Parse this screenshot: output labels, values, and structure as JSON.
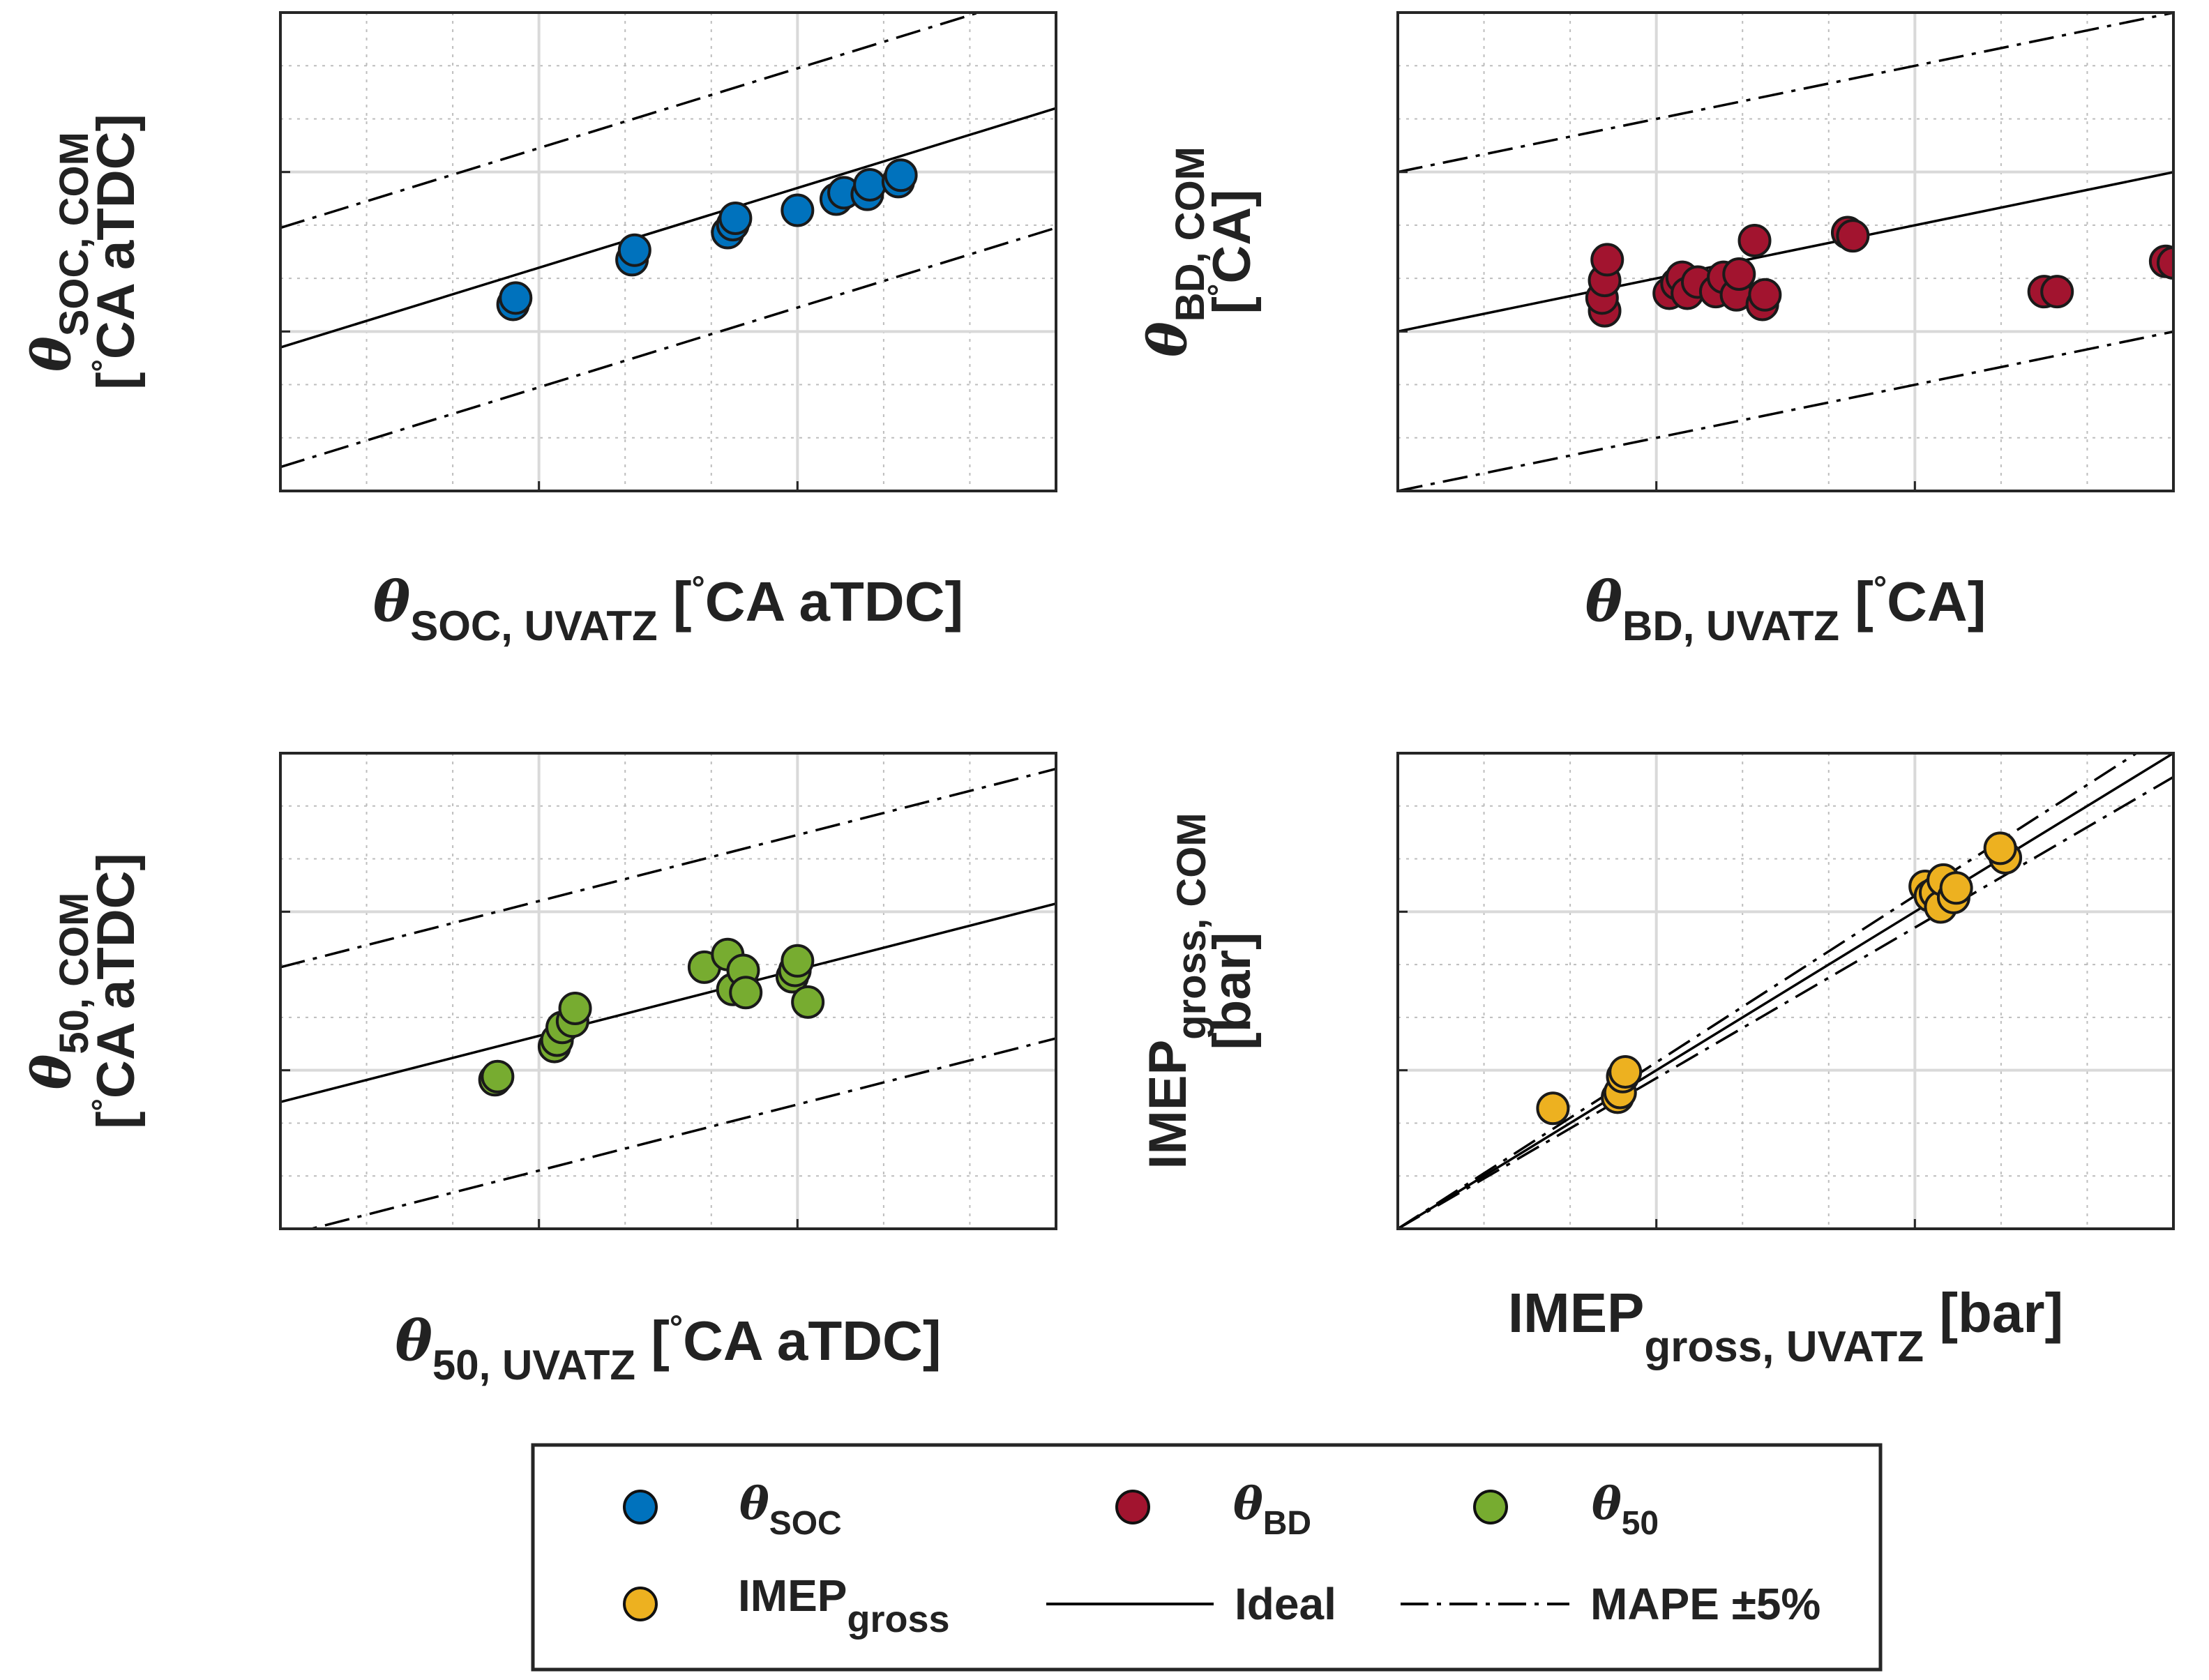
{
  "colors": {
    "soc": "#0072BD",
    "bd": "#A2142F",
    "p50": "#77AC30",
    "imep": "#EDB120",
    "grid_major": "#d9d9d9",
    "grid_minor": "#bdbdbd",
    "axis": "#262626"
  },
  "legend": {
    "soc": {
      "sym": "θ",
      "sub": "SOC"
    },
    "bd": {
      "sym": "θ",
      "sub": "BD"
    },
    "p50": {
      "sym": "θ",
      "sub": "50"
    },
    "imep": {
      "main": "IMEP",
      "sub": "gross"
    },
    "ideal": "Ideal",
    "mape": "MAPE ±5%"
  },
  "chart_data": [
    {
      "type": "scatter",
      "series_key": "soc",
      "xlabel": {
        "sym": "θ",
        "sub": "SOC, UVATZ",
        "unit_open": " [",
        "deg": "°",
        "unit_rest": "CA aTDC]"
      },
      "ylabel": {
        "sym": "θ",
        "sub": "SOC, COM",
        "unit_open": "[",
        "deg": "°",
        "unit_rest": "CA aTDC]"
      },
      "xlim": [
        0,
        30
      ],
      "ylim": [
        0,
        30
      ],
      "major": 3,
      "minor": 3,
      "ideal": {
        "slope": 0.5,
        "intercept": 9
      },
      "band": 7.5,
      "points": [
        [
          9.0,
          11.7
        ],
        [
          9.1,
          12.1
        ],
        [
          13.6,
          14.5
        ],
        [
          13.7,
          15.1
        ],
        [
          17.3,
          16.2
        ],
        [
          17.5,
          16.7
        ],
        [
          17.6,
          17.1
        ],
        [
          20.0,
          17.6
        ],
        [
          21.5,
          18.3
        ],
        [
          21.8,
          18.7
        ],
        [
          22.7,
          18.6
        ],
        [
          22.8,
          19.2
        ],
        [
          23.9,
          19.4
        ],
        [
          24.0,
          19.8
        ]
      ]
    },
    {
      "type": "scatter",
      "series_key": "bd",
      "xlabel": {
        "sym": "θ",
        "sub": "BD, UVATZ",
        "unit_open": " [",
        "deg": "°",
        "unit_rest": "CA]"
      },
      "ylabel": {
        "sym": "θ",
        "sub": "BD, COM",
        "unit_open": "[",
        "deg": "°",
        "unit_rest": "CA]"
      },
      "xlim": [
        0,
        30
      ],
      "ylim": [
        0,
        30
      ],
      "major": 3,
      "minor": 3,
      "ideal": {
        "slope": 0.333,
        "intercept": 10
      },
      "band": 10,
      "points": [
        [
          8.0,
          11.3
        ],
        [
          7.9,
          12.1
        ],
        [
          8.0,
          13.2
        ],
        [
          8.1,
          14.5
        ],
        [
          10.5,
          12.4
        ],
        [
          10.8,
          13.0
        ],
        [
          11.0,
          13.4
        ],
        [
          11.2,
          12.4
        ],
        [
          11.6,
          13.1
        ],
        [
          12.3,
          12.5
        ],
        [
          12.6,
          13.4
        ],
        [
          13.1,
          12.3
        ],
        [
          13.2,
          13.6
        ],
        [
          14.1,
          11.7
        ],
        [
          14.2,
          12.3
        ],
        [
          13.8,
          15.7
        ],
        [
          17.4,
          16.2
        ],
        [
          17.6,
          16.0
        ],
        [
          25.0,
          12.5
        ],
        [
          25.5,
          12.5
        ],
        [
          29.7,
          14.4
        ],
        [
          30.0,
          14.3
        ]
      ]
    },
    {
      "type": "scatter",
      "series_key": "p50",
      "xlabel": {
        "sym": "θ",
        "sub": "50, UVATZ",
        "unit_open": " [",
        "deg": "°",
        "unit_rest": "CA aTDC]"
      },
      "ylabel": {
        "sym": "θ",
        "sub": "50, COM",
        "unit_open": "[",
        "deg": "°",
        "unit_rest": "CA aTDC]"
      },
      "xlim": [
        0,
        30
      ],
      "ylim": [
        0,
        30
      ],
      "major": 3,
      "minor": 3,
      "ideal": {
        "slope": 0.417,
        "intercept": 8
      },
      "band": 8.5,
      "points": [
        [
          8.3,
          9.4
        ],
        [
          8.4,
          9.6
        ],
        [
          10.6,
          11.5
        ],
        [
          10.7,
          11.9
        ],
        [
          10.9,
          12.7
        ],
        [
          11.3,
          13.1
        ],
        [
          11.4,
          13.9
        ],
        [
          16.4,
          16.5
        ],
        [
          17.3,
          17.3
        ],
        [
          17.5,
          15.1
        ],
        [
          17.9,
          16.3
        ],
        [
          18.0,
          14.9
        ],
        [
          19.8,
          15.9
        ],
        [
          19.9,
          16.3
        ],
        [
          20.0,
          16.9
        ],
        [
          20.4,
          14.3
        ]
      ]
    },
    {
      "type": "scatter",
      "series_key": "imep",
      "xlabel": {
        "main": "IMEP",
        "sub": "gross, UVATZ",
        "unit": " [bar]"
      },
      "ylabel": {
        "main": "IMEP",
        "sub": "gross, COM",
        "unit": "[bar]"
      },
      "xlim": [
        0,
        30
      ],
      "ylim": [
        0,
        30
      ],
      "major": 3,
      "minor": 3,
      "ideal": {
        "slope": 1,
        "intercept": 0
      },
      "band": 0.05,
      "band_mode": "relative",
      "points": [
        [
          6.0,
          7.6
        ],
        [
          8.5,
          8.3
        ],
        [
          8.6,
          8.6
        ],
        [
          8.7,
          9.6
        ],
        [
          8.8,
          9.9
        ],
        [
          20.4,
          21.6
        ],
        [
          20.6,
          21.0
        ],
        [
          20.8,
          21.2
        ],
        [
          21.0,
          20.3
        ],
        [
          21.1,
          22.0
        ],
        [
          21.5,
          20.9
        ],
        [
          21.6,
          21.5
        ],
        [
          23.5,
          23.4
        ],
        [
          23.3,
          24.0
        ]
      ]
    }
  ]
}
